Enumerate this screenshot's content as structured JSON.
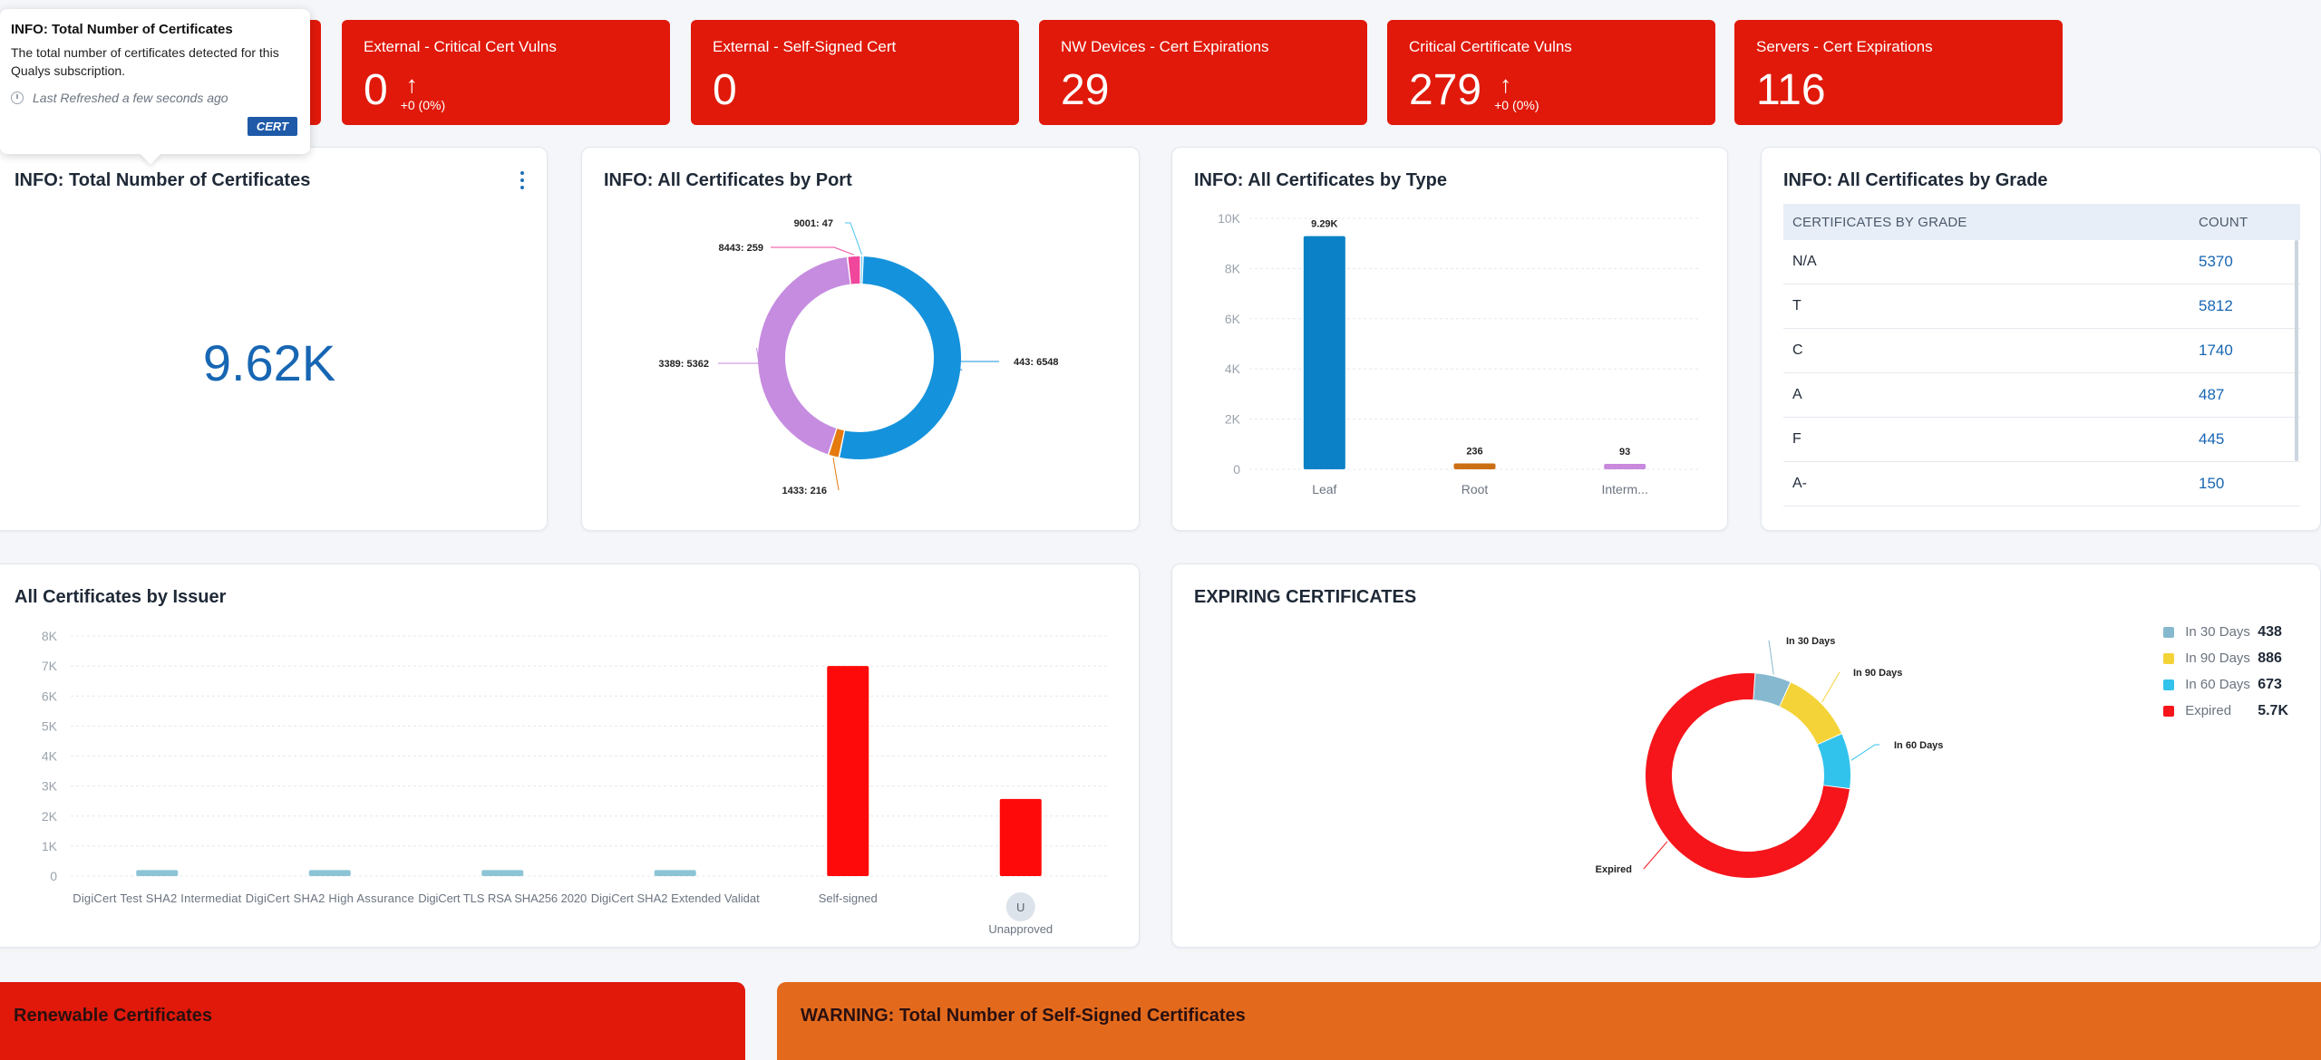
{
  "tooltip": {
    "title": "INFO: Total Number of Certificates",
    "description": "The total number of certificates detected for this Qualys subscription.",
    "refresh": "Last Refreshed a few seconds ago",
    "tag": "CERT"
  },
  "kpis": [
    {
      "title": "External - Critical Cert Vulns",
      "value": "0",
      "delta": "+0 (0%)"
    },
    {
      "title": "External - Self-Signed Cert",
      "value": "0"
    },
    {
      "title": "NW Devices - Cert Expirations",
      "value": "29"
    },
    {
      "title": "Critical Certificate Vulns",
      "value": "279",
      "delta": "+0 (0%)"
    },
    {
      "title": "Servers - Cert Expirations",
      "value": "116"
    }
  ],
  "kpi_arrow": "↑",
  "total": {
    "title": "INFO: Total Number of Certificates",
    "value": "9.62K"
  },
  "port": {
    "title": "INFO: All Certificates by Port"
  },
  "type": {
    "title": "INFO: All Certificates by Type"
  },
  "grade": {
    "title": "INFO: All Certificates by Grade",
    "col1": "CERTIFICATES BY GRADE",
    "col2": "COUNT",
    "rows": [
      {
        "grade": "N/A",
        "count": "5370"
      },
      {
        "grade": "T",
        "count": "5812"
      },
      {
        "grade": "C",
        "count": "1740"
      },
      {
        "grade": "A",
        "count": "487"
      },
      {
        "grade": "F",
        "count": "445"
      },
      {
        "grade": "A-",
        "count": "150"
      }
    ]
  },
  "issuer": {
    "title": "All Certificates by Issuer"
  },
  "expiring": {
    "title": "EXPIRING CERTIFICATES",
    "legend": [
      {
        "label": "In 30 Days",
        "value": "438",
        "color": "#86b9cf"
      },
      {
        "label": "In 90 Days",
        "value": "886",
        "color": "#f4d338"
      },
      {
        "label": "In 60 Days",
        "value": "673",
        "color": "#32c3ec"
      },
      {
        "label": "Expired",
        "value": "5.7K",
        "color": "#f5151b"
      }
    ]
  },
  "bottom": {
    "renewable": "Renewable Certificates",
    "self_signed": "WARNING: Total Number of Self-Signed Certificates"
  },
  "chart_data": [
    {
      "type": "pie",
      "title": "INFO: All Certificates by Port",
      "series": [
        {
          "name": "443",
          "value": 6548,
          "label": "443: 6548",
          "color": "#1592dc"
        },
        {
          "name": "1433",
          "value": 216,
          "label": "1433: 216",
          "color": "#e57a0f"
        },
        {
          "name": "3389",
          "value": 5362,
          "label": "3389: 5362",
          "color": "#c68ce0"
        },
        {
          "name": "8443",
          "value": 259,
          "label": "8443: 259",
          "color": "#f0469c"
        },
        {
          "name": "9001",
          "value": 47,
          "label": "9001: 47",
          "color": "#4cc3f0"
        }
      ]
    },
    {
      "type": "bar",
      "title": "INFO: All Certificates by Type",
      "categories": [
        "Leaf",
        "Root",
        "Interm..."
      ],
      "values": [
        9290,
        236,
        93
      ],
      "data_labels": [
        "9.29K",
        "236",
        "93"
      ],
      "colors": [
        "#0b82c7",
        "#cc6f14",
        "#c98ade"
      ],
      "yticks": [
        "0",
        "2K",
        "4K",
        "6K",
        "8K",
        "10K"
      ],
      "ylim": [
        0,
        10000
      ]
    },
    {
      "type": "bar",
      "title": "All Certificates by Issuer",
      "categories": [
        "DigiCert Test SHA2 Intermediat",
        "DigiCert SHA2 High Assurance",
        "DigiCert TLS RSA SHA256 2020",
        "DigiCert SHA2 Extended Validat",
        "Self-signed",
        "Unapproved"
      ],
      "values": [
        200,
        200,
        200,
        200,
        7000,
        2570
      ],
      "colors": [
        "#8cc4d6",
        "#8cc4d6",
        "#8cc4d6",
        "#8cc4d6",
        "#ff0a0a",
        "#ff0a0a"
      ],
      "badge": "U",
      "yticks": [
        "0",
        "1K",
        "2K",
        "3K",
        "4K",
        "5K",
        "6K",
        "7K",
        "8K"
      ],
      "ylim": [
        0,
        8000
      ]
    },
    {
      "type": "pie",
      "title": "EXPIRING CERTIFICATES",
      "series": [
        {
          "name": "In 30 Days",
          "value": 438,
          "color": "#86b9cf"
        },
        {
          "name": "In 90 Days",
          "value": 886,
          "color": "#f4d338"
        },
        {
          "name": "In 60 Days",
          "value": 673,
          "color": "#32c3ec"
        },
        {
          "name": "Expired",
          "value": 5700,
          "color": "#f5151b"
        }
      ]
    }
  ]
}
